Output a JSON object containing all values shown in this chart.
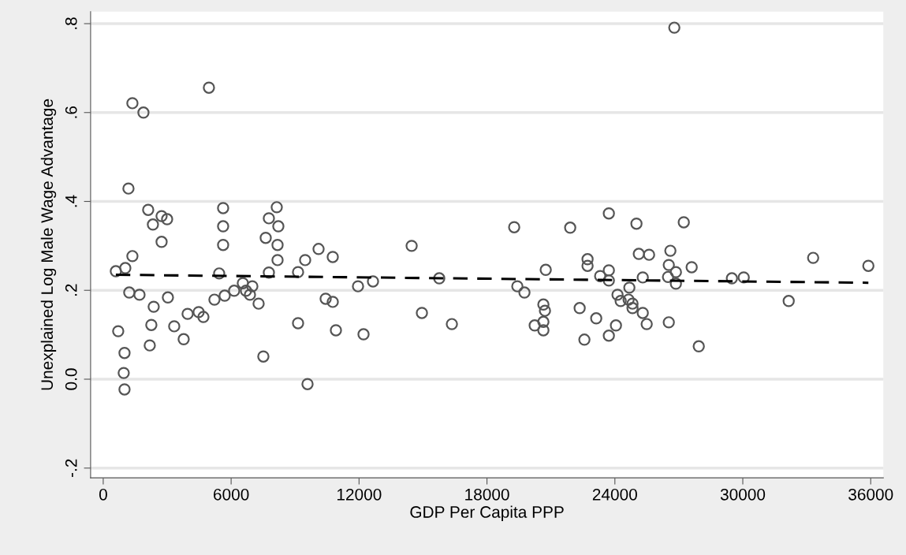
{
  "chart_data": {
    "type": "scatter",
    "xlabel": "GDP Per Capita PPP",
    "ylabel": "Unexplained Log Male Wage Advantage",
    "xlim": [
      -592,
      36593
    ],
    "ylim": [
      -0.222,
      0.827
    ],
    "xticks": [
      0,
      6000,
      12000,
      18000,
      24000,
      30000,
      36000
    ],
    "yticks": [
      {
        "value": -0.2,
        "label": "-.2"
      },
      {
        "value": 0,
        "label": "0.0"
      },
      {
        "value": 0.2,
        "label": ".2"
      },
      {
        "value": 0.4,
        "label": ".4"
      },
      {
        "value": 0.6,
        "label": ".6"
      },
      {
        "value": 0.8,
        "label": ".8"
      }
    ],
    "grid": "y",
    "legend": false,
    "series": [
      {
        "marker": "circle",
        "color": "#555555",
        "x": [
          592,
          703,
          1036,
          1184,
          999,
          962,
          999,
          1221,
          1369,
          1369,
          1702,
          1887,
          2109,
          2257,
          2331,
          2368,
          2738,
          2738,
          2997,
          3034,
          2183,
          3330,
          3774,
          3959,
          4477,
          4699,
          4958,
          5217,
          5439,
          5624,
          5624,
          5624,
          5698,
          6142,
          6549,
          6697,
          6993,
          6882,
          7289,
          7511,
          7622,
          7770,
          7770,
          8140,
          8214,
          8177,
          8177,
          9139,
          9139,
          9472,
          9583,
          10101,
          10434,
          10767,
          10767,
          10915,
          11951,
          12210,
          12654,
          14467,
          14948,
          15762,
          16354,
          19277,
          19425,
          19758,
          20239,
          20646,
          20720,
          20646,
          20646,
          20757,
          21904,
          22348,
          22570,
          22718,
          22718,
          23125,
          23310,
          23717,
          23717,
          23717,
          23717,
          24050,
          24124,
          24272,
          24642,
          24679,
          24827,
          24827,
          25012,
          25123,
          25308,
          25308,
          25493,
          25604,
          26492,
          26529,
          26529,
          26603,
          26788,
          26862,
          26862,
          27232,
          27602,
          27935,
          29489,
          30044,
          32153,
          33300,
          35890
        ],
        "values": [
          0.243,
          0.108,
          0.25,
          0.429,
          0.059,
          0.014,
          -0.023,
          0.195,
          0.277,
          0.621,
          0.19,
          0.6,
          0.381,
          0.122,
          0.348,
          0.163,
          0.309,
          0.367,
          0.36,
          0.184,
          0.076,
          0.119,
          0.09,
          0.147,
          0.151,
          0.14,
          0.656,
          0.179,
          0.238,
          0.385,
          0.344,
          0.302,
          0.188,
          0.199,
          0.216,
          0.199,
          0.209,
          0.19,
          0.17,
          0.051,
          0.318,
          0.362,
          0.24,
          0.387,
          0.344,
          0.302,
          0.268,
          0.241,
          0.126,
          0.268,
          -0.011,
          0.293,
          0.181,
          0.275,
          0.174,
          0.11,
          0.209,
          0.101,
          0.22,
          0.3,
          0.149,
          0.227,
          0.124,
          0.342,
          0.209,
          0.195,
          0.121,
          0.168,
          0.154,
          0.129,
          0.11,
          0.246,
          0.341,
          0.16,
          0.089,
          0.27,
          0.255,
          0.137,
          0.232,
          0.373,
          0.245,
          0.222,
          0.098,
          0.121,
          0.19,
          0.176,
          0.179,
          0.206,
          0.17,
          0.16,
          0.35,
          0.282,
          0.229,
          0.149,
          0.124,
          0.28,
          0.23,
          0.257,
          0.128,
          0.289,
          0.791,
          0.241,
          0.215,
          0.353,
          0.252,
          0.074,
          0.227,
          0.229,
          0.176,
          0.273,
          0.255
        ]
      },
      {
        "type": "line",
        "line_style": "dashed",
        "marker": "none",
        "color": "#000000",
        "x": [
          592,
          35890
        ],
        "values": [
          0.235,
          0.217
        ]
      }
    ]
  }
}
